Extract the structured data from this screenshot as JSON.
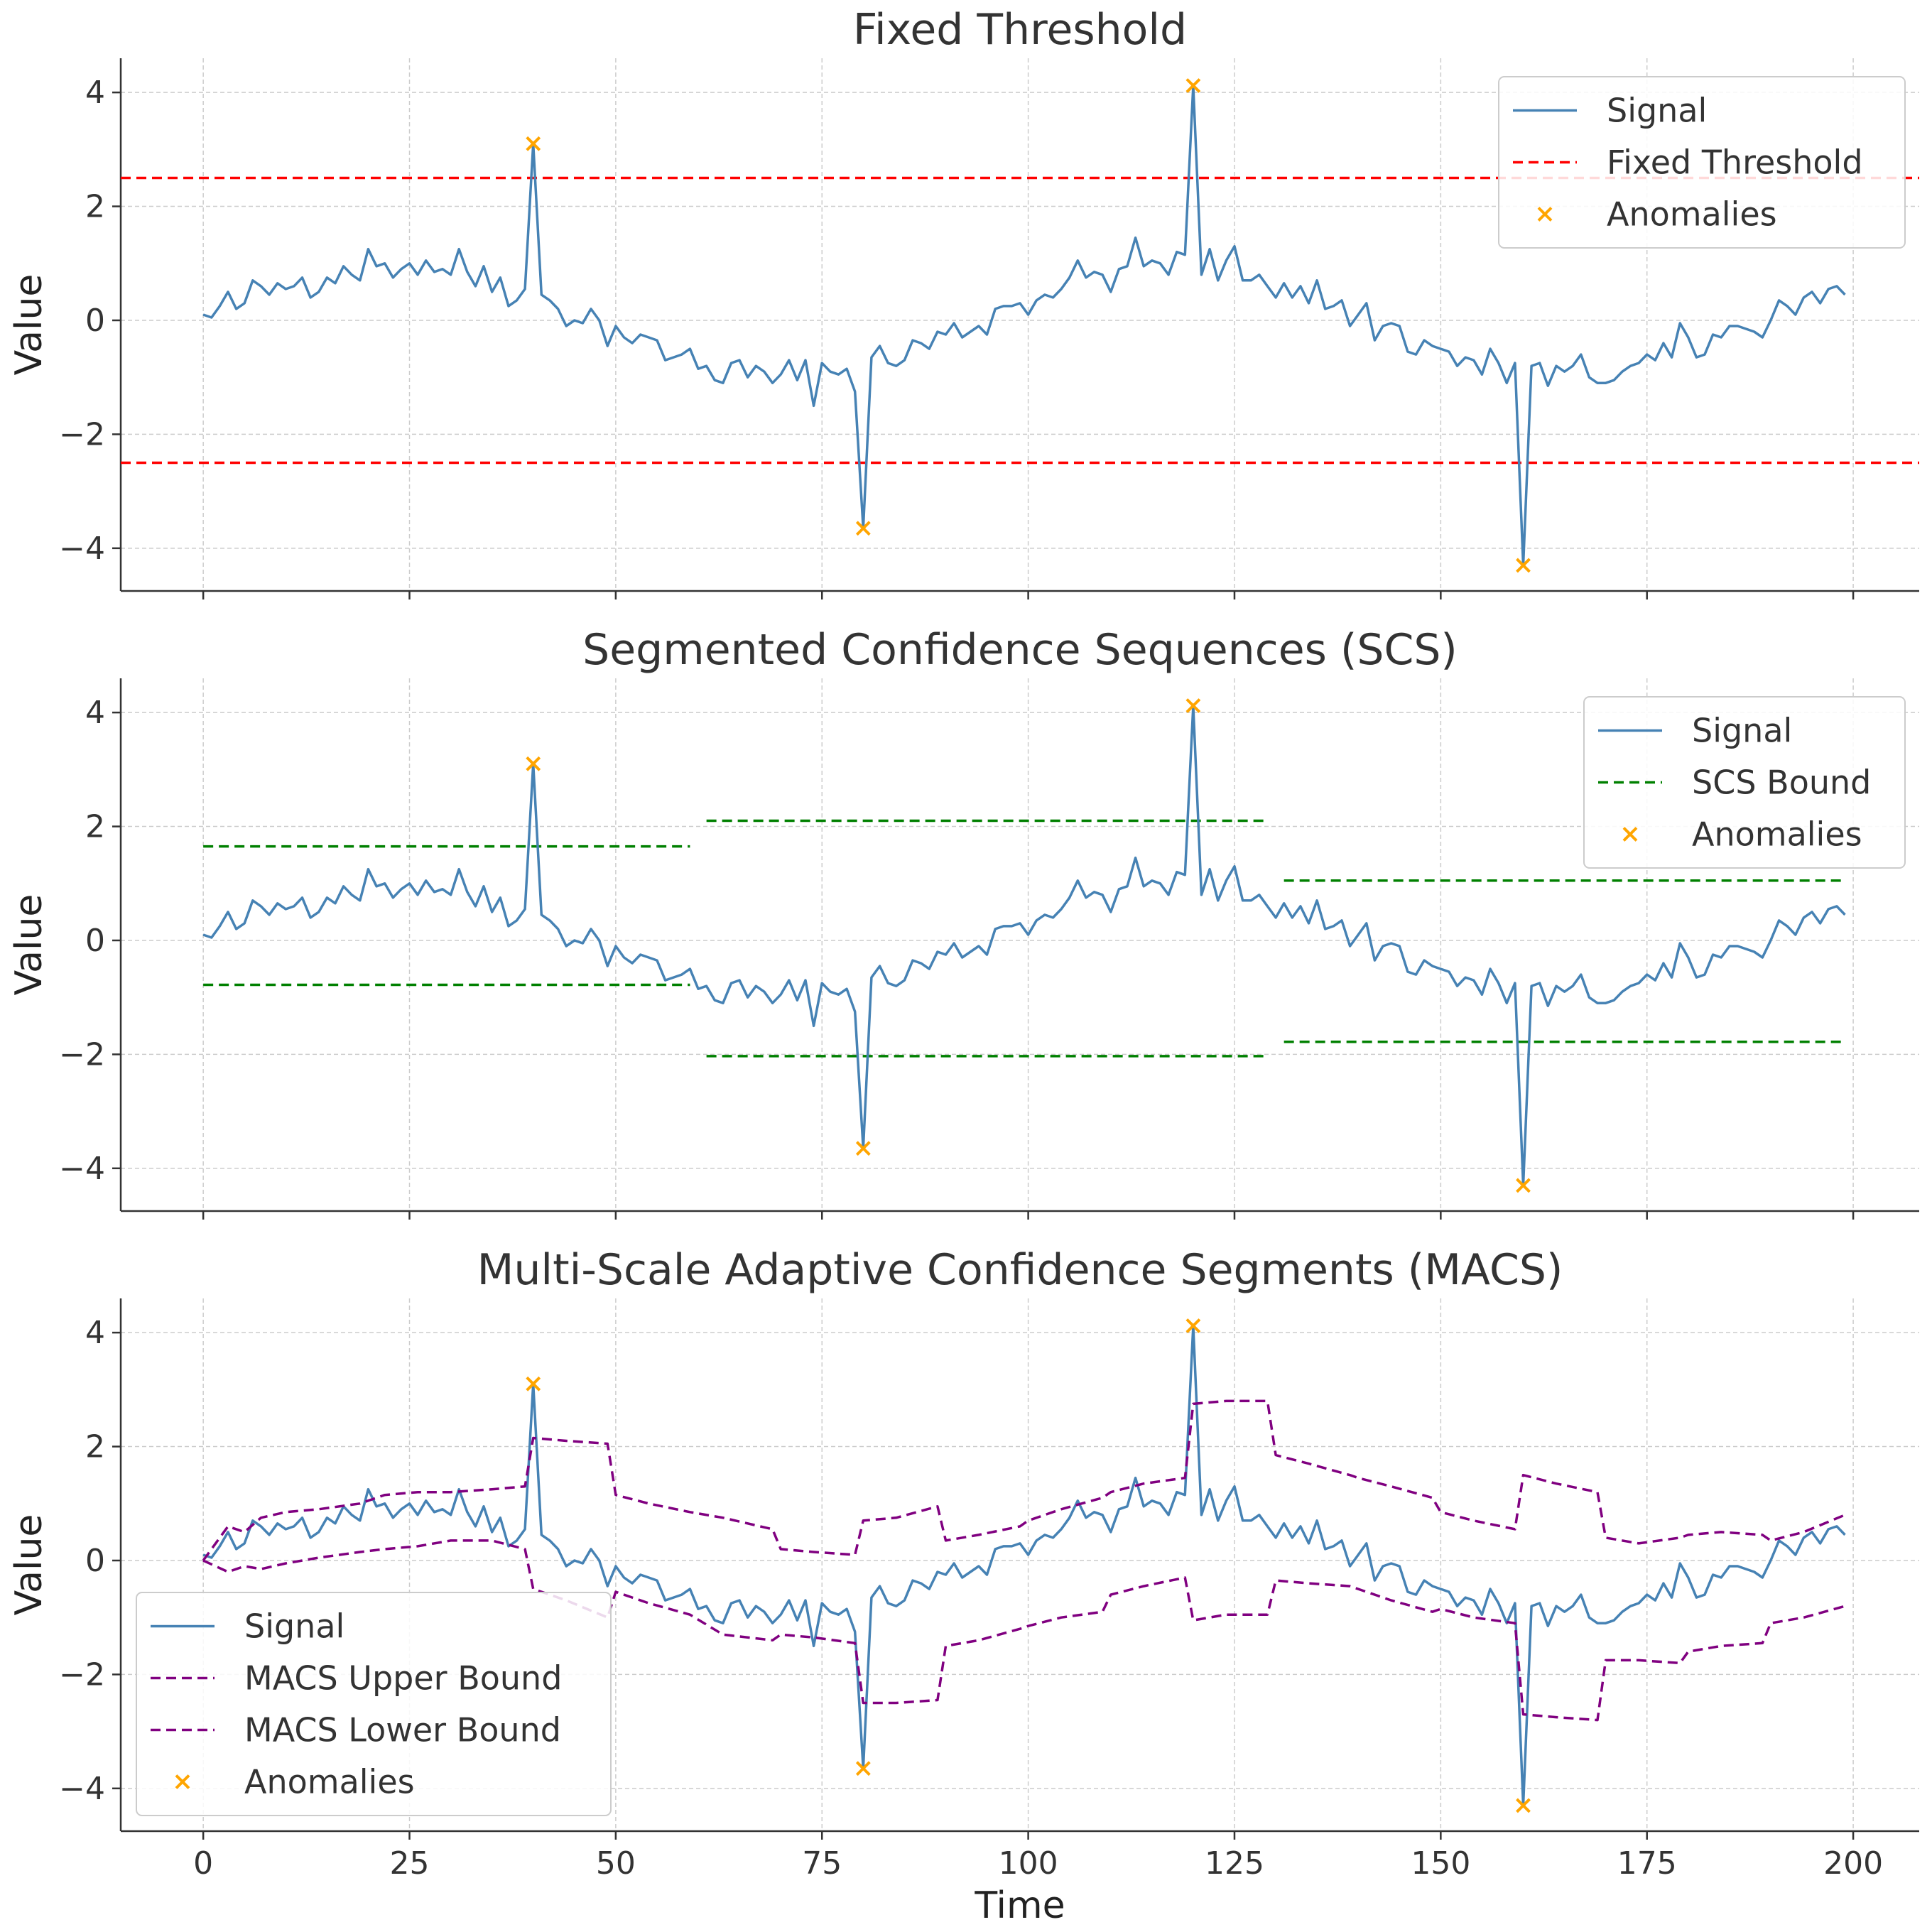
{
  "colors": {
    "signal": "#4682b4",
    "fixed": "#ff0000",
    "scs": "#008000",
    "macs": "#800080",
    "anomaly": "#ffa500",
    "grid": "#cccccc",
    "axis": "#333333"
  },
  "chart_data": [
    {
      "type": "line",
      "title": "Fixed Threshold",
      "xlabel": "",
      "ylabel": "Value",
      "xlim": [
        -10,
        208
      ],
      "ylim": [
        -4.75,
        4.6
      ],
      "yticks": [
        -4,
        -2,
        0,
        2,
        4
      ],
      "ytick_labels": [
        "−4",
        "−2",
        "0",
        "2",
        "4"
      ],
      "xticks": [
        0,
        25,
        50,
        75,
        100,
        125,
        150,
        175,
        200
      ],
      "show_xtick_labels": false,
      "grid": true,
      "legend": {
        "position": "top-right",
        "entries": [
          {
            "label": "Signal",
            "kind": "line",
            "color": "#4682b4"
          },
          {
            "label": "Fixed Threshold",
            "kind": "dashed",
            "color": "#ff0000"
          },
          {
            "label": "Anomalies",
            "kind": "marker",
            "color": "#ffa500"
          }
        ]
      },
      "hlines": [
        {
          "y": 2.5,
          "color": "#ff0000"
        },
        {
          "y": -2.5,
          "color": "#ff0000"
        }
      ],
      "series": [
        {
          "name": "Signal",
          "signal": true
        }
      ],
      "anomalies": [
        {
          "x": 40,
          "y": 3.1
        },
        {
          "x": 80,
          "y": -3.65
        },
        {
          "x": 120,
          "y": 4.12
        },
        {
          "x": 160,
          "y": -4.3
        }
      ]
    },
    {
      "type": "line",
      "title": "Segmented Confidence Sequences (SCS)",
      "xlabel": "",
      "ylabel": "Value",
      "xlim": [
        -10,
        208
      ],
      "ylim": [
        -4.75,
        4.6
      ],
      "yticks": [
        -4,
        -2,
        0,
        2,
        4
      ],
      "ytick_labels": [
        "−4",
        "−2",
        "0",
        "2",
        "4"
      ],
      "xticks": [
        0,
        25,
        50,
        75,
        100,
        125,
        150,
        175,
        200
      ],
      "show_xtick_labels": false,
      "grid": true,
      "legend": {
        "position": "top-right",
        "entries": [
          {
            "label": "Signal",
            "kind": "line",
            "color": "#4682b4"
          },
          {
            "label": "SCS Bound",
            "kind": "dashed",
            "color": "#008000"
          },
          {
            "label": "Anomalies",
            "kind": "marker",
            "color": "#ffa500"
          }
        ]
      },
      "segments": [
        {
          "x0": 0,
          "x1": 59,
          "y": 1.65,
          "color": "#008000"
        },
        {
          "x0": 0,
          "x1": 59,
          "y": -0.78,
          "color": "#008000"
        },
        {
          "x0": 61,
          "x1": 129,
          "y": 2.1,
          "color": "#008000"
        },
        {
          "x0": 61,
          "x1": 129,
          "y": -2.03,
          "color": "#008000"
        },
        {
          "x0": 131,
          "x1": 199,
          "y": 1.05,
          "color": "#008000"
        },
        {
          "x0": 131,
          "x1": 199,
          "y": -1.78,
          "color": "#008000"
        }
      ],
      "series": [
        {
          "name": "Signal",
          "signal": true
        }
      ],
      "anomalies": [
        {
          "x": 40,
          "y": 3.1
        },
        {
          "x": 80,
          "y": -3.65
        },
        {
          "x": 120,
          "y": 4.12
        },
        {
          "x": 160,
          "y": -4.3
        }
      ]
    },
    {
      "type": "line",
      "title": "Multi-Scale Adaptive Confidence Segments (MACS)",
      "xlabel": "Time",
      "ylabel": "Value",
      "xlim": [
        -10,
        208
      ],
      "ylim": [
        -4.75,
        4.6
      ],
      "yticks": [
        -4,
        -2,
        0,
        2,
        4
      ],
      "ytick_labels": [
        "−4",
        "−2",
        "0",
        "2",
        "4"
      ],
      "xticks": [
        0,
        25,
        50,
        75,
        100,
        125,
        150,
        175,
        200
      ],
      "xtick_labels": [
        "0",
        "25",
        "50",
        "75",
        "100",
        "125",
        "150",
        "175",
        "200"
      ],
      "show_xtick_labels": true,
      "grid": true,
      "legend": {
        "position": "bottom-left",
        "entries": [
          {
            "label": "Signal",
            "kind": "line",
            "color": "#4682b4"
          },
          {
            "label": "MACS Upper Bound",
            "kind": "dashed",
            "color": "#800080"
          },
          {
            "label": "MACS Lower Bound",
            "kind": "dashed",
            "color": "#800080"
          },
          {
            "label": "Anomalies",
            "kind": "marker",
            "color": "#ffa500"
          }
        ]
      },
      "series": [
        {
          "name": "Signal",
          "signal": true
        },
        {
          "name": "MACS Upper Bound",
          "dashed": true,
          "color": "#800080",
          "x": [
            0,
            3,
            5,
            7,
            10,
            14,
            19,
            22,
            26,
            30,
            35,
            39,
            40,
            44,
            49,
            50,
            54,
            59,
            63,
            69,
            70,
            74,
            79,
            80,
            84,
            89,
            90,
            94,
            99,
            100,
            104,
            109,
            110,
            114,
            119,
            120,
            124,
            129,
            130,
            134,
            139,
            140,
            144,
            149,
            150,
            154,
            159,
            160,
            164,
            169,
            170,
            174,
            179,
            180,
            184,
            189,
            190,
            194,
            199
          ],
          "y": [
            0.0,
            0.6,
            0.5,
            0.75,
            0.85,
            0.9,
            1.0,
            1.15,
            1.2,
            1.2,
            1.25,
            1.3,
            2.15,
            2.1,
            2.05,
            1.15,
            1.0,
            0.85,
            0.75,
            0.55,
            0.2,
            0.15,
            0.1,
            0.7,
            0.75,
            0.95,
            0.35,
            0.45,
            0.6,
            0.7,
            0.9,
            1.1,
            1.2,
            1.35,
            1.45,
            2.75,
            2.8,
            2.8,
            1.85,
            1.7,
            1.5,
            1.45,
            1.3,
            1.1,
            0.85,
            0.7,
            0.55,
            1.5,
            1.35,
            1.2,
            0.4,
            0.3,
            0.4,
            0.45,
            0.5,
            0.45,
            0.35,
            0.5,
            0.8
          ]
        },
        {
          "name": "MACS Lower Bound",
          "dashed": true,
          "color": "#800080",
          "x": [
            0,
            3,
            5,
            7,
            10,
            14,
            19,
            22,
            26,
            30,
            35,
            39,
            40,
            44,
            49,
            50,
            54,
            59,
            63,
            69,
            70,
            74,
            79,
            80,
            84,
            89,
            90,
            94,
            99,
            100,
            104,
            109,
            110,
            114,
            119,
            120,
            124,
            129,
            130,
            134,
            139,
            140,
            144,
            149,
            150,
            154,
            159,
            160,
            164,
            169,
            170,
            174,
            179,
            180,
            184,
            189,
            190,
            194,
            199
          ],
          "y": [
            0.0,
            -0.2,
            -0.1,
            -0.15,
            -0.05,
            0.05,
            0.15,
            0.2,
            0.25,
            0.35,
            0.35,
            0.2,
            -0.5,
            -0.7,
            -1.0,
            -0.55,
            -0.75,
            -0.95,
            -1.3,
            -1.4,
            -1.3,
            -1.35,
            -1.45,
            -2.5,
            -2.5,
            -2.45,
            -1.5,
            -1.4,
            -1.2,
            -1.15,
            -1.0,
            -0.9,
            -0.6,
            -0.45,
            -0.3,
            -1.05,
            -0.95,
            -0.95,
            -0.35,
            -0.4,
            -0.45,
            -0.5,
            -0.7,
            -0.9,
            -0.85,
            -1.0,
            -1.1,
            -2.7,
            -2.75,
            -2.8,
            -1.75,
            -1.75,
            -1.8,
            -1.6,
            -1.5,
            -1.45,
            -1.1,
            -1.0,
            -0.8
          ]
        }
      ],
      "anomalies": [
        {
          "x": 40,
          "y": 3.1
        },
        {
          "x": 80,
          "y": -3.65
        },
        {
          "x": 120,
          "y": 4.12
        },
        {
          "x": 160,
          "y": -4.3
        }
      ]
    }
  ],
  "signal": {
    "x": [
      0,
      1,
      2,
      3,
      4,
      5,
      6,
      7,
      8,
      9,
      10,
      11,
      12,
      13,
      14,
      15,
      16,
      17,
      18,
      19,
      20,
      21,
      22,
      23,
      24,
      25,
      26,
      27,
      28,
      29,
      30,
      31,
      32,
      33,
      34,
      35,
      36,
      37,
      38,
      39,
      40,
      41,
      42,
      43,
      44,
      45,
      46,
      47,
      48,
      49,
      50,
      51,
      52,
      53,
      54,
      55,
      56,
      57,
      58,
      59,
      60,
      61,
      62,
      63,
      64,
      65,
      66,
      67,
      68,
      69,
      70,
      71,
      72,
      73,
      74,
      75,
      76,
      77,
      78,
      79,
      80,
      81,
      82,
      83,
      84,
      85,
      86,
      87,
      88,
      89,
      90,
      91,
      92,
      93,
      94,
      95,
      96,
      97,
      98,
      99,
      100,
      101,
      102,
      103,
      104,
      105,
      106,
      107,
      108,
      109,
      110,
      111,
      112,
      113,
      114,
      115,
      116,
      117,
      118,
      119,
      120,
      121,
      122,
      123,
      124,
      125,
      126,
      127,
      128,
      129,
      130,
      131,
      132,
      133,
      134,
      135,
      136,
      137,
      138,
      139,
      140,
      141,
      142,
      143,
      144,
      145,
      146,
      147,
      148,
      149,
      150,
      151,
      152,
      153,
      154,
      155,
      156,
      157,
      158,
      159,
      160,
      161,
      162,
      163,
      164,
      165,
      166,
      167,
      168,
      169,
      170,
      171,
      172,
      173,
      174,
      175,
      176,
      177,
      178,
      179,
      180,
      181,
      182,
      183,
      184,
      185,
      186,
      187,
      188,
      189,
      190,
      191,
      192,
      193,
      194,
      195,
      196,
      197,
      198,
      199
    ],
    "y": [
      0.1,
      0.05,
      0.25,
      0.5,
      0.2,
      0.3,
      0.7,
      0.6,
      0.45,
      0.65,
      0.55,
      0.6,
      0.75,
      0.4,
      0.5,
      0.75,
      0.65,
      0.95,
      0.8,
      0.7,
      1.25,
      0.95,
      1.0,
      0.75,
      0.9,
      1.0,
      0.8,
      1.05,
      0.85,
      0.9,
      0.8,
      1.25,
      0.85,
      0.6,
      0.95,
      0.5,
      0.75,
      0.25,
      0.35,
      0.55,
      3.1,
      0.45,
      0.35,
      0.2,
      -0.1,
      0.0,
      -0.05,
      0.2,
      0.0,
      -0.45,
      -0.1,
      -0.3,
      -0.4,
      -0.25,
      -0.3,
      -0.35,
      -0.7,
      -0.65,
      -0.6,
      -0.5,
      -0.85,
      -0.8,
      -1.05,
      -1.1,
      -0.75,
      -0.7,
      -1.0,
      -0.8,
      -0.9,
      -1.1,
      -0.95,
      -0.7,
      -1.05,
      -0.7,
      -1.5,
      -0.75,
      -0.9,
      -0.95,
      -0.85,
      -1.25,
      -3.65,
      -0.65,
      -0.45,
      -0.75,
      -0.8,
      -0.7,
      -0.35,
      -0.4,
      -0.5,
      -0.2,
      -0.25,
      -0.05,
      -0.3,
      -0.2,
      -0.1,
      -0.25,
      0.2,
      0.25,
      0.25,
      0.3,
      0.1,
      0.35,
      0.45,
      0.4,
      0.55,
      0.75,
      1.05,
      0.75,
      0.85,
      0.8,
      0.5,
      0.9,
      0.95,
      1.45,
      0.95,
      1.05,
      1.0,
      0.8,
      1.2,
      1.15,
      4.12,
      0.8,
      1.25,
      0.7,
      1.05,
      1.3,
      0.7,
      0.7,
      0.8,
      0.6,
      0.4,
      0.65,
      0.4,
      0.6,
      0.3,
      0.7,
      0.2,
      0.25,
      0.35,
      -0.1,
      0.1,
      0.3,
      -0.35,
      -0.1,
      -0.05,
      -0.1,
      -0.55,
      -0.6,
      -0.35,
      -0.45,
      -0.5,
      -0.55,
      -0.8,
      -0.65,
      -0.7,
      -0.95,
      -0.5,
      -0.75,
      -1.1,
      -0.75,
      -4.3,
      -0.8,
      -0.75,
      -1.15,
      -0.8,
      -0.9,
      -0.8,
      -0.6,
      -1.0,
      -1.1,
      -1.1,
      -1.05,
      -0.9,
      -0.8,
      -0.75,
      -0.6,
      -0.7,
      -0.4,
      -0.65,
      -0.05,
      -0.3,
      -0.65,
      -0.6,
      -0.25,
      -0.3,
      -0.1,
      -0.1,
      -0.15,
      -0.2,
      -0.3,
      0.0,
      0.35,
      0.25,
      0.1,
      0.4,
      0.5,
      0.3,
      0.55,
      0.6,
      0.45
    ]
  }
}
